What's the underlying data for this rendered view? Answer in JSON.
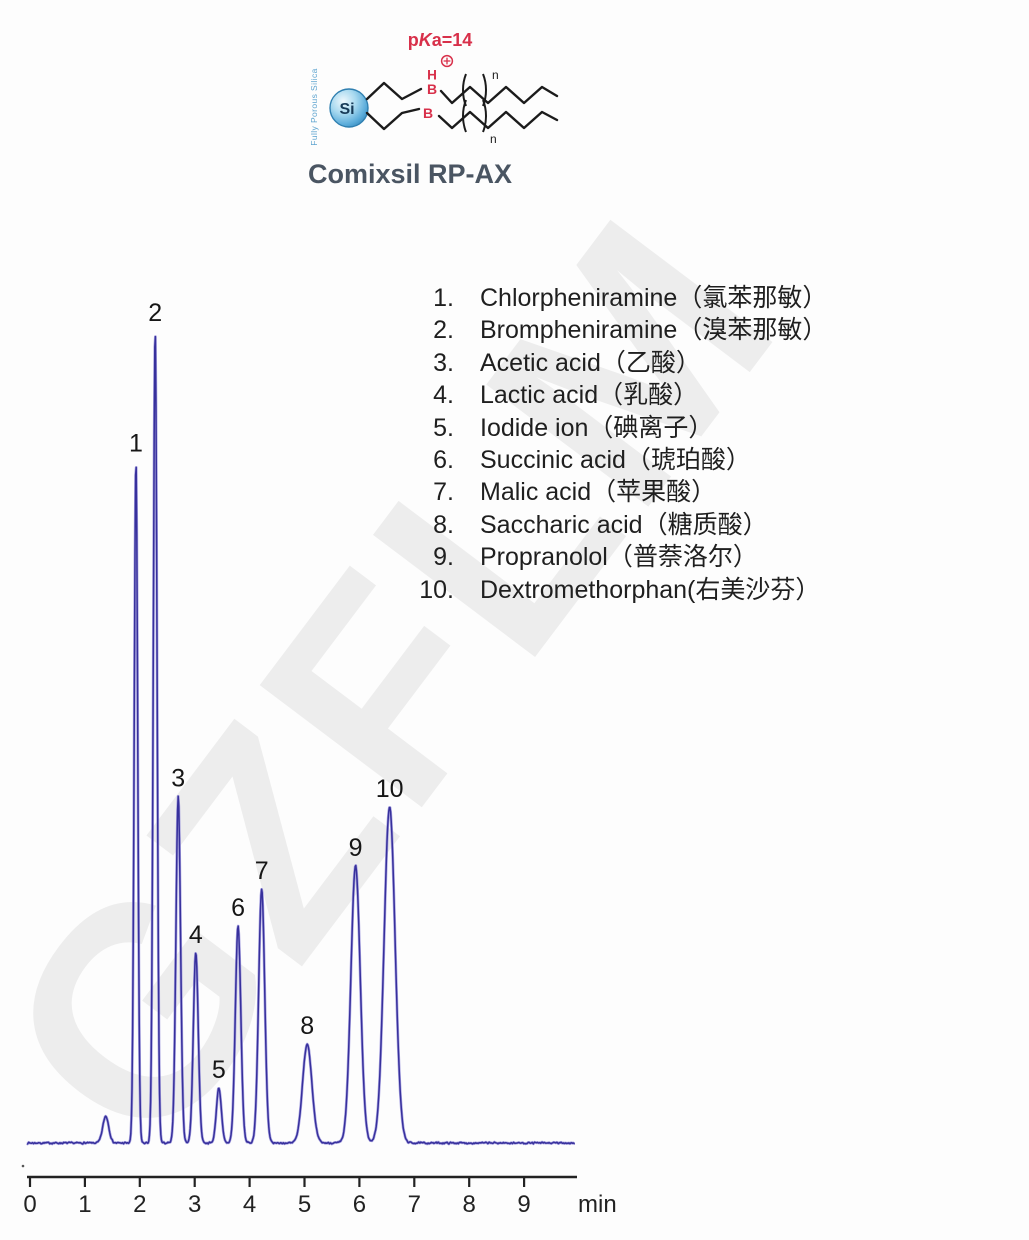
{
  "watermark": {
    "text": "GZFLM"
  },
  "structure": {
    "pka_p": "p",
    "pka_k": "K",
    "pka_rest": "a=14",
    "plus": "+",
    "h": "H",
    "b_upper": "B",
    "b_lower": "B",
    "n_upper": "n",
    "n_lower": "n",
    "si": "Si",
    "silica_caption": "Fully Porous Silica",
    "column_name": "Comixsil RP-AX",
    "colors": {
      "red": "#d8304a",
      "silica_text_blue": "#5ca3cf",
      "title_slate": "#4a5562",
      "bond_black": "#1b1b1b",
      "ball_blue": "#3c8fc2"
    }
  },
  "legend": {
    "items": [
      {
        "num": "1.",
        "label": "Chlorpheniramine（氯苯那敏）"
      },
      {
        "num": "2.",
        "label": "Brompheniramine（溴苯那敏）"
      },
      {
        "num": "3.",
        "label": "Acetic acid（乙酸）"
      },
      {
        "num": "4.",
        "label": "Lactic acid（乳酸）"
      },
      {
        "num": "5.",
        "label": "Iodide ion（碘离子）"
      },
      {
        "num": "6.",
        "label": "Succinic acid（琥珀酸）"
      },
      {
        "num": "7.",
        "label": "Malic acid（苹果酸）"
      },
      {
        "num": "8.",
        "label": "Saccharic acid（糖质酸）"
      },
      {
        "num": "9.",
        "label": "Propranolol（普萘洛尔）"
      },
      {
        "num": "10.",
        "label": "Dextromethorphan(右美沙芬）"
      }
    ]
  },
  "axis": {
    "tick_labels": [
      "0",
      "1",
      "2",
      "3",
      "4",
      "5",
      "6",
      "7",
      "8",
      "9"
    ],
    "unit_label": "min"
  },
  "chart_data": {
    "type": "line",
    "title": "",
    "xlabel": "min",
    "ylabel": "",
    "x_ticks": [
      0,
      1,
      2,
      3,
      4,
      5,
      6,
      7,
      8,
      9
    ],
    "x_range_min": [
      0,
      9.95
    ],
    "grid": false,
    "legend_position": "upper-right-list",
    "trace_color_core": "#37309c",
    "trace_color_halo": "#9089d8",
    "axis_color": "#222222",
    "peaks": [
      {
        "label": "1",
        "compound": "Chlorpheniramine",
        "rt_min": 1.93,
        "rel_height": 0.839,
        "sigma_min": 0.032
      },
      {
        "label": "2",
        "compound": "Brompheniramine",
        "rt_min": 2.28,
        "rel_height": 1.0,
        "sigma_min": 0.034
      },
      {
        "label": "3",
        "compound": "Acetic acid",
        "rt_min": 2.7,
        "rel_height": 0.427,
        "sigma_min": 0.042
      },
      {
        "label": "4",
        "compound": "Lactic acid",
        "rt_min": 3.02,
        "rel_height": 0.234,
        "sigma_min": 0.045
      },
      {
        "label": "5",
        "compound": "Iodide ion",
        "rt_min": 3.44,
        "rel_height": 0.068,
        "sigma_min": 0.045
      },
      {
        "label": "6",
        "compound": "Succinic acid",
        "rt_min": 3.79,
        "rel_height": 0.267,
        "sigma_min": 0.05
      },
      {
        "label": "7",
        "compound": "Malic acid",
        "rt_min": 4.22,
        "rel_height": 0.313,
        "sigma_min": 0.055
      },
      {
        "label": "8",
        "compound": "Saccharic acid",
        "rt_min": 5.05,
        "rel_height": 0.122,
        "sigma_min": 0.085
      },
      {
        "label": "9",
        "compound": "Propranolol",
        "rt_min": 5.93,
        "rel_height": 0.341,
        "sigma_min": 0.085
      },
      {
        "label": "10",
        "compound": "Dextromethorphan",
        "rt_min": 6.55,
        "rel_height": 0.414,
        "sigma_min": 0.1
      }
    ],
    "unlabeled_features": [
      {
        "note": "solvent front bump",
        "rt_min": 1.38,
        "rel_height": 0.033,
        "sigma_min": 0.055
      }
    ]
  }
}
